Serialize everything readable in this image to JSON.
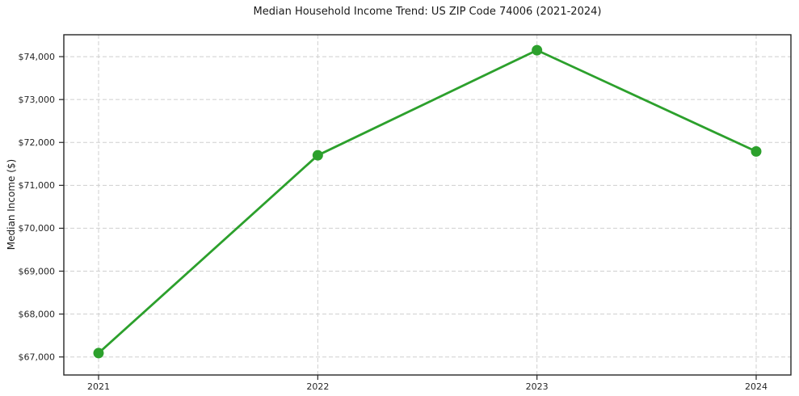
{
  "chart_data": {
    "type": "line",
    "title": "Median Household Income Trend: US ZIP Code 74006 (2021-2024)",
    "xlabel": "",
    "ylabel": "Median Income ($)",
    "x": [
      2021,
      2022,
      2023,
      2024
    ],
    "series": [
      {
        "name": "Median household income",
        "values": [
          67090,
          71700,
          74150,
          71790
        ]
      }
    ],
    "ylim": [
      66580,
      74510
    ],
    "yticks": [
      {
        "value": 67000,
        "label": "$67,000"
      },
      {
        "value": 68000,
        "label": "$68,000"
      },
      {
        "value": 69000,
        "label": "$69,000"
      },
      {
        "value": 70000,
        "label": "$70,000"
      },
      {
        "value": 71000,
        "label": "$71,000"
      },
      {
        "value": 72000,
        "label": "$72,000"
      },
      {
        "value": 73000,
        "label": "$73,000"
      },
      {
        "value": 74000,
        "label": "$74,000"
      }
    ],
    "xticks": [
      {
        "value": 2021,
        "label": "2021"
      },
      {
        "value": 2022,
        "label": "2022"
      },
      {
        "value": 2023,
        "label": "2023"
      },
      {
        "value": 2024,
        "label": "2024"
      }
    ],
    "grid": true,
    "grid_style": "dashed",
    "legend": "none",
    "marker": "circle",
    "colors": {
      "line": "#2ca02c",
      "marker": "#2ca02c",
      "grid": "#cfcfcf",
      "spine": "#262626",
      "text": "#262626",
      "background": "#ffffff"
    }
  }
}
